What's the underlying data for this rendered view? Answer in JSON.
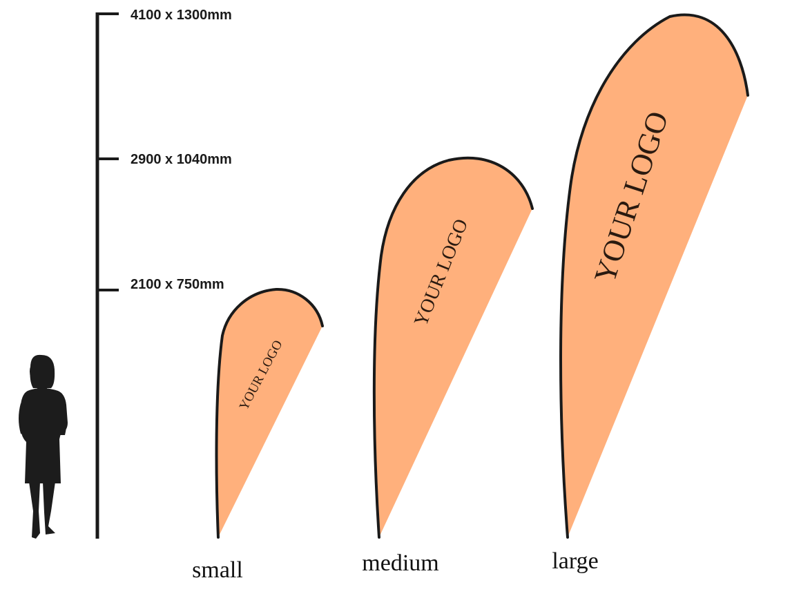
{
  "colors": {
    "flag_fill": "#FFB07C",
    "flag_outline": "#1a1a1a",
    "silhouette": "#1c1c1c",
    "scale_bar": "#1a1a1a"
  },
  "scale": {
    "marks": [
      {
        "label": "4100 x 1300mm"
      },
      {
        "label": "2900 x 1040mm"
      },
      {
        "label": "2100 x 750mm"
      }
    ]
  },
  "flags": [
    {
      "size": "small",
      "logo": "YOUR LOGO"
    },
    {
      "size": "medium",
      "logo": "YOUR LOGO"
    },
    {
      "size": "large",
      "logo": "YOUR LOGO"
    }
  ],
  "person": {
    "icon": "person-silhouette-icon"
  }
}
